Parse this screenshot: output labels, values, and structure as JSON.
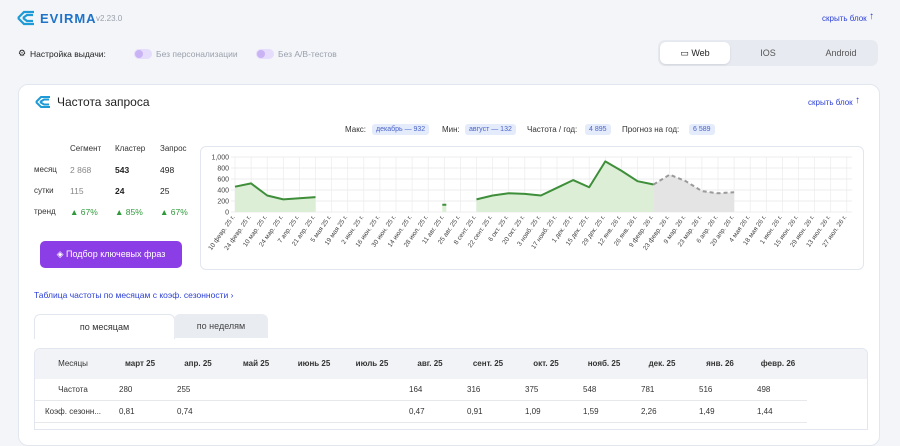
{
  "header": {
    "brand": "EVIRMA",
    "version": "v2.23.0",
    "collapse": "скрыть блок"
  },
  "settings": {
    "label": "Настройка выдачи:",
    "toggles": [
      "Без персонализации",
      "Без A/B-тестов"
    ],
    "platforms": [
      "Web",
      "IOS",
      "Android"
    ]
  },
  "panel": {
    "title": "Частота запроса",
    "collapse": "скрыть блок"
  },
  "stats": {
    "max_label": "Макс:",
    "max": "декабрь — 932",
    "min_label": "Мин:",
    "min": "август — 132",
    "year_label": "Частота / год:",
    "year": "4 895",
    "forecast_label": "Прогноз на год:",
    "forecast": "6 589"
  },
  "metrics": {
    "columns": [
      "Сегмент",
      "Кластер",
      "Запрос"
    ],
    "rows": [
      {
        "label": "месяц",
        "values": [
          "2 868",
          "543",
          "498"
        ]
      },
      {
        "label": "сутки",
        "values": [
          "115",
          "24",
          "25"
        ]
      },
      {
        "label": "тренд",
        "values": [
          "▲ 67%",
          "▲ 85%",
          "▲ 67%"
        ]
      }
    ]
  },
  "button": "Подбор ключевых фраз",
  "table_link": "Таблица частоты по месяцам с коэф. сезонности",
  "tabs": [
    "по месяцам",
    "по неделям"
  ],
  "table": {
    "header": [
      "Месяцы",
      "март 25",
      "апр. 25",
      "май 25",
      "июнь 25",
      "июль 25",
      "авг. 25",
      "сент. 25",
      "окт. 25",
      "нояб. 25",
      "дек. 25",
      "янв. 26",
      "февр. 26"
    ],
    "rows": [
      [
        "Частота",
        "280",
        "255",
        null,
        null,
        null,
        "164",
        "316",
        "375",
        "548",
        "781",
        "516",
        "498"
      ],
      [
        "Коэф. сезонн...",
        "0,81",
        "0,74",
        null,
        null,
        null,
        "0,47",
        "0,91",
        "1,09",
        "1,59",
        "2,26",
        "1,49",
        "1,44"
      ]
    ]
  },
  "chart_data": {
    "type": "line",
    "categories": [
      "10 февр. 25 г.",
      "24 февр. 25 г.",
      "10 мар. 25 г.",
      "24 мар. 25 г.",
      "7 апр. 25 г.",
      "21 апр. 25 г.",
      "5 мая 25 г.",
      "19 мая 25 г.",
      "2 июн. 25 г.",
      "16 июн. 25 г.",
      "30 июн. 25 г.",
      "14 июл. 25 г.",
      "28 июл. 25 г.",
      "11 авг. 25 г.",
      "25 авг. 25 г.",
      "8 сент. 25 г.",
      "22 сент. 25 г.",
      "6 окт. 25 г.",
      "20 окт. 25 г.",
      "3 нояб. 25 г.",
      "17 нояб. 25 г.",
      "1 дек. 25 г.",
      "15 дек. 25 г.",
      "29 дек. 25 г.",
      "12 янв. 26 г.",
      "26 янв. 26 г.",
      "9 февр. 26 г.",
      "23 февр. 26 г.",
      "9 мар. 26 г.",
      "23 мар. 26 г.",
      "6 апр. 26 г.",
      "20 апр. 26 г.",
      "4 мая 26 г.",
      "18 мая 26 г.",
      "1 июн. 26 г.",
      "15 июн. 26 г.",
      "29 июн. 26 г.",
      "13 июл. 26 г.",
      "27 июл. 26 г."
    ],
    "series": [
      {
        "color": "#3e8e3a",
        "fill": "#dcefd6",
        "dashed": false,
        "values": [
          460,
          520,
          300,
          230,
          250,
          270,
          null,
          null,
          null,
          null,
          null,
          null,
          null,
          132,
          null,
          230,
          300,
          340,
          330,
          300,
          440,
          580,
          450,
          920,
          750,
          560,
          500,
          null,
          null,
          null,
          null,
          null,
          null,
          null,
          null,
          null,
          null,
          null,
          null
        ]
      },
      {
        "color": "#9a9a9a",
        "fill": "#e4e4e4",
        "dashed": true,
        "values": [
          null,
          null,
          null,
          null,
          null,
          null,
          null,
          null,
          null,
          null,
          null,
          null,
          null,
          null,
          null,
          null,
          null,
          null,
          null,
          null,
          null,
          null,
          null,
          null,
          null,
          null,
          500,
          680,
          560,
          380,
          340,
          360,
          null,
          null,
          null,
          null,
          null,
          null,
          null
        ]
      }
    ],
    "ylim": [
      0,
      1000
    ],
    "yticks": [
      0,
      200,
      400,
      600,
      800,
      {
        "value": 1000,
        "label": "1,000"
      }
    ],
    "grid": true
  }
}
